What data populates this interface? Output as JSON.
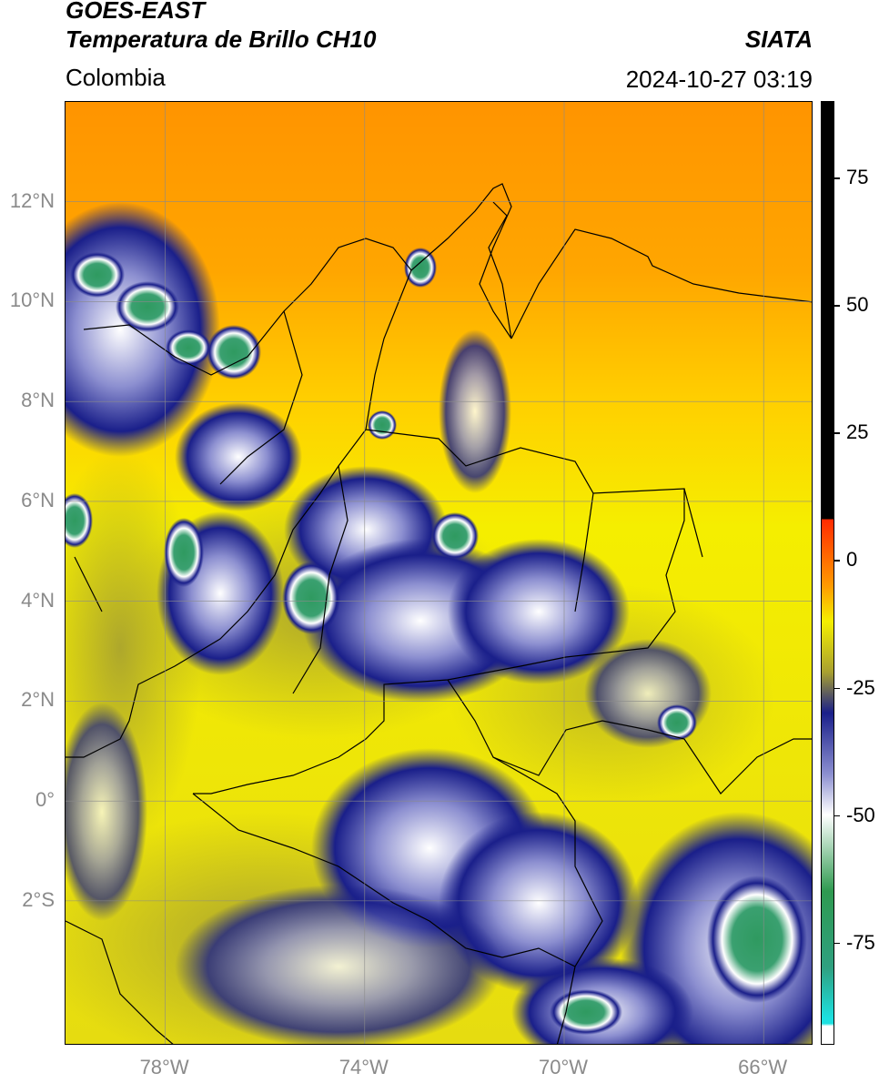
{
  "header": {
    "satellite": "GOES-EAST",
    "product": "Temperatura de Brillo CH10",
    "region": "Colombia",
    "agency": "SIATA",
    "datetime": "2024-10-27 03:19"
  },
  "map": {
    "lat_labels": [
      "12°N",
      "10°N",
      "8°N",
      "6°N",
      "4°N",
      "2°N",
      "0°",
      "2°S"
    ],
    "lon_labels": [
      "78°W",
      "74°W",
      "70°W",
      "66°W"
    ],
    "lon_range": [
      -80,
      -65
    ],
    "lat_range": [
      -4.9,
      14
    ],
    "gridlines": true
  },
  "colorbar": {
    "tick_labels": [
      "75",
      "50",
      "25",
      "0",
      "-25",
      "-50",
      "-75"
    ],
    "range": [
      -95,
      90
    ],
    "colors": {
      "hot": "#000000",
      "warm": "#ff2a00",
      "orange": "#ff9a00",
      "yellow": "#f5ef00",
      "olive": "#a8a030",
      "navy": "#1a1f8a",
      "white": "#ffffff",
      "green": "#2f9a50",
      "cyan": "#1de0e0"
    }
  }
}
